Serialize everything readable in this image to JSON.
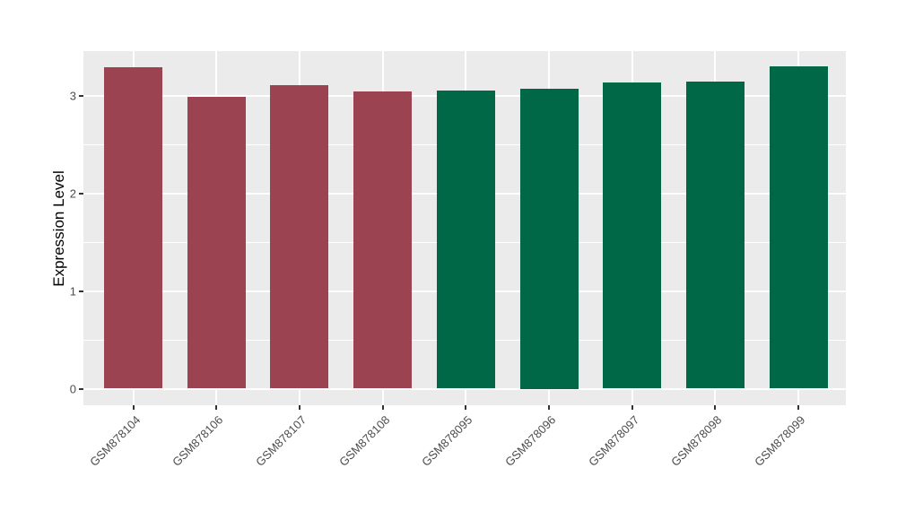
{
  "chart_data": {
    "type": "bar",
    "title": "",
    "xlabel": "",
    "ylabel": "Expression Level",
    "categories": [
      "GSM878104",
      "GSM878106",
      "GSM878107",
      "GSM878108",
      "GSM878095",
      "GSM878096",
      "GSM878097",
      "GSM878098",
      "GSM878099"
    ],
    "values": [
      3.29,
      2.99,
      3.11,
      3.05,
      3.06,
      3.07,
      3.14,
      3.15,
      3.3
    ],
    "bar_colors": [
      "#9C4351",
      "#9C4351",
      "#9C4351",
      "#9C4351",
      "#016847",
      "#016847",
      "#016847",
      "#016847",
      "#016847"
    ],
    "group_colors": {
      "left_group": "#9C4351",
      "right_group": "#016847"
    },
    "yticks": [
      0,
      1,
      2,
      3
    ],
    "ytick_labels": [
      "0",
      "1",
      "2",
      "3"
    ],
    "minor_yticks": [
      0.5,
      1.5,
      2.5
    ],
    "ylim": [
      -0.17,
      3.46
    ],
    "grid": true,
    "legend_position": "none",
    "panel_background": "#EBEBEB",
    "gridline_color": "#FFFFFF",
    "tick_mark_color": "#333333",
    "axis_text_color": "#4D4D4D"
  }
}
